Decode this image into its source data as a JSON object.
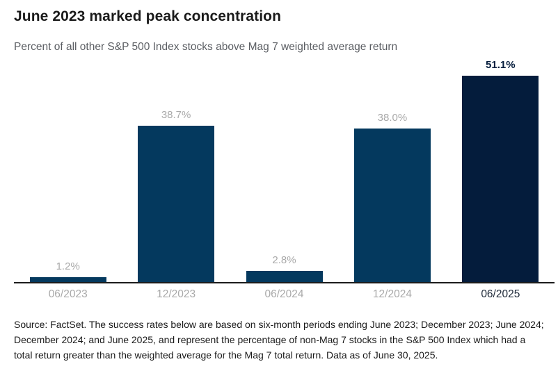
{
  "header": {
    "title": "June 2023 marked peak concentration",
    "subtitle": "Percent of all other S&P 500 Index stocks above Mag 7 weighted average return"
  },
  "chart_data": {
    "type": "bar",
    "title": "June 2023 marked peak concentration",
    "subtitle": "Percent of all other S&P 500 Index stocks above Mag 7 weighted average return",
    "categories": [
      "06/2023",
      "12/2023",
      "06/2024",
      "12/2024",
      "06/2025"
    ],
    "values": [
      1.2,
      38.7,
      2.8,
      38.0,
      51.1
    ],
    "data_labels": [
      "1.2%",
      "38.7%",
      "2.8%",
      "38.0%",
      "51.1%"
    ],
    "highlight_index": 4,
    "xlabel": "",
    "ylabel": "",
    "ylim": [
      0,
      55
    ],
    "grid": false,
    "legend": "none",
    "colors": {
      "bar": "#04395e",
      "bar_highlight": "#041c3c",
      "data_label": "#a9a9a9",
      "data_label_highlight": "#041c3c",
      "tick_label": "#a9a9a9",
      "tick_label_highlight": "#1c2736",
      "axis_line": "#1c1c1c"
    }
  },
  "footer": {
    "source": "Source: FactSet. The success rates below are based on six-month periods ending June 2023; December 2023; June 2024; December 2024; and June 2025, and represent the percentage of non-Mag 7 stocks in the S&P 500 Index which had a total return greater than the weighted average for the Mag 7 total return. Data as of June 30, 2025."
  }
}
